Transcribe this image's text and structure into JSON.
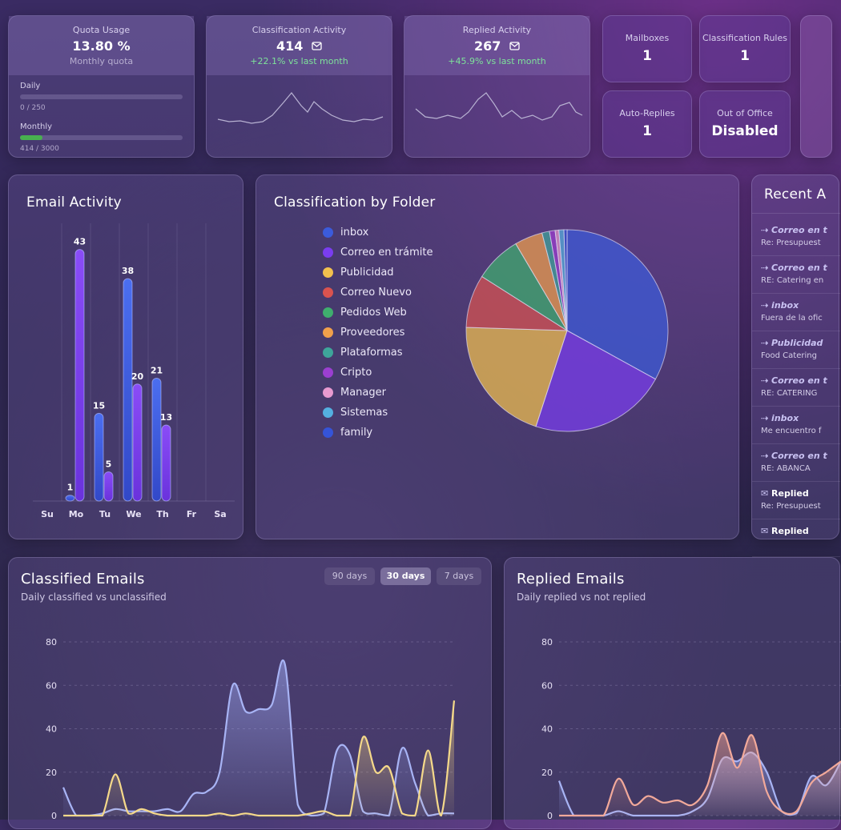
{
  "quota": {
    "title": "Quota Usage",
    "value": "13.80 %",
    "subtitle": "Monthly quota",
    "daily_label": "Daily",
    "daily_value": "0 / 250",
    "daily_fraction": 0,
    "monthly_label": "Monthly",
    "monthly_value": "414 / 3000",
    "monthly_fraction": 0.138
  },
  "classification_activity": {
    "title": "Classification Activity",
    "value": "414",
    "change": "+22.1% vs last month"
  },
  "replied_activity": {
    "title": "Replied Activity",
    "value": "267",
    "change": "+45.9% vs last month"
  },
  "stats": {
    "mailboxes": {
      "label": "Mailboxes",
      "value": "1"
    },
    "classification_rules": {
      "label": "Classification Rules",
      "value": "1"
    },
    "auto_replies": {
      "label": "Auto-Replies",
      "value": "1"
    },
    "out_of_office": {
      "label": "Out of Office",
      "value": "Disabled"
    }
  },
  "email_activity": {
    "title": "Email Activity"
  },
  "folders": {
    "title": "Classification by Folder"
  },
  "recent": {
    "title": "Recent A",
    "items": [
      {
        "title": "Correo en t",
        "subtitle": "Re: Presupuest",
        "icon": "forward-icon"
      },
      {
        "title": "Correo en t",
        "subtitle": "RE: Catering en",
        "icon": "forward-icon"
      },
      {
        "title": "inbox",
        "subtitle": "Fuera de la ofic",
        "icon": "forward-icon"
      },
      {
        "title": "Publicidad",
        "subtitle": "Food Catering",
        "icon": "forward-icon"
      },
      {
        "title": "Correo en t",
        "subtitle": "RE: CATERING",
        "icon": "forward-icon"
      },
      {
        "title": "inbox",
        "subtitle": "Me encuentro f",
        "icon": "forward-icon"
      },
      {
        "title": "Correo en t",
        "subtitle": "RE: ABANCA",
        "icon": "forward-icon"
      },
      {
        "title": "Replied",
        "subtitle": "Re: Presupuest",
        "icon": "reply-icon"
      },
      {
        "title": "Replied",
        "subtitle": "",
        "icon": "reply-icon"
      }
    ]
  },
  "classified_emails": {
    "title": "Classified Emails",
    "subtitle": "Daily classified vs unclassified",
    "ranges": [
      "90 days",
      "30 days",
      "7 days"
    ],
    "active_range": "30 days"
  },
  "replied_emails": {
    "title": "Replied Emails",
    "subtitle": "Daily replied vs not replied"
  },
  "colors": {
    "blue": "#3b5bdb",
    "purple": "#7a3df0",
    "yellow": "#f2c14e",
    "red": "#d9534f",
    "green": "#3fae6e",
    "orange": "#f0a04b",
    "teal": "#3ea59a",
    "magenta": "#9b3fd0",
    "pink": "#e89ad0",
    "sky": "#54b0e0",
    "blue2": "#3554d8"
  },
  "chart_data": [
    {
      "type": "bar",
      "title": "Email Activity",
      "categories": [
        "Su",
        "Mo",
        "Tu",
        "We",
        "Th",
        "Fr",
        "Sa"
      ],
      "series": [
        {
          "values": [
            0,
            1,
            15,
            38,
            21,
            0,
            0
          ]
        },
        {
          "values": [
            0,
            43,
            5,
            20,
            13,
            0,
            0
          ]
        }
      ],
      "ylim": [
        0,
        45
      ],
      "grid": true
    },
    {
      "type": "pie",
      "title": "Classification by Folder",
      "categories": [
        "inbox",
        "Correo en trámite",
        "Publicidad",
        "Correo Nuevo",
        "Pedidos Web",
        "Proveedores",
        "Plataformas",
        "Cripto",
        "Manager",
        "Sistemas",
        "family"
      ],
      "values": [
        33.0,
        22.0,
        20.5,
        8.5,
        7.5,
        4.5,
        1.2,
        0.9,
        0.6,
        0.8,
        0.5
      ],
      "legend": "left"
    },
    {
      "type": "area",
      "title": "Classified Emails",
      "ylim": [
        0,
        80
      ],
      "yticks": [
        0,
        20,
        40,
        60,
        80
      ],
      "grid": true,
      "series": [
        {
          "values": [
            13,
            0,
            0,
            1,
            3,
            2,
            2,
            2,
            3,
            2,
            10,
            11,
            20,
            60,
            48,
            49,
            51,
            70,
            5,
            0,
            1,
            30,
            28,
            2,
            1,
            0,
            31,
            15,
            0,
            1,
            1
          ]
        },
        {
          "values": [
            0,
            0,
            0,
            0,
            19,
            1,
            3,
            1,
            0,
            0,
            0,
            0,
            1,
            0,
            1,
            0,
            0,
            0,
            0,
            1,
            2,
            0,
            0,
            36,
            20,
            22,
            1,
            0,
            30,
            0,
            53
          ]
        }
      ]
    },
    {
      "type": "area",
      "title": "Replied Emails",
      "ylim": [
        0,
        80
      ],
      "yticks": [
        0,
        20,
        40,
        60,
        80
      ],
      "grid": true,
      "series": [
        {
          "values": [
            16,
            0,
            0,
            0,
            2,
            0,
            0,
            0,
            0,
            2,
            8,
            26,
            25,
            29,
            20,
            2,
            1,
            18,
            14,
            25
          ]
        },
        {
          "values": [
            0,
            0,
            0,
            0,
            17,
            5,
            9,
            6,
            7,
            5,
            14,
            38,
            22,
            37,
            11,
            2,
            2,
            15,
            20,
            25
          ]
        }
      ]
    }
  ]
}
